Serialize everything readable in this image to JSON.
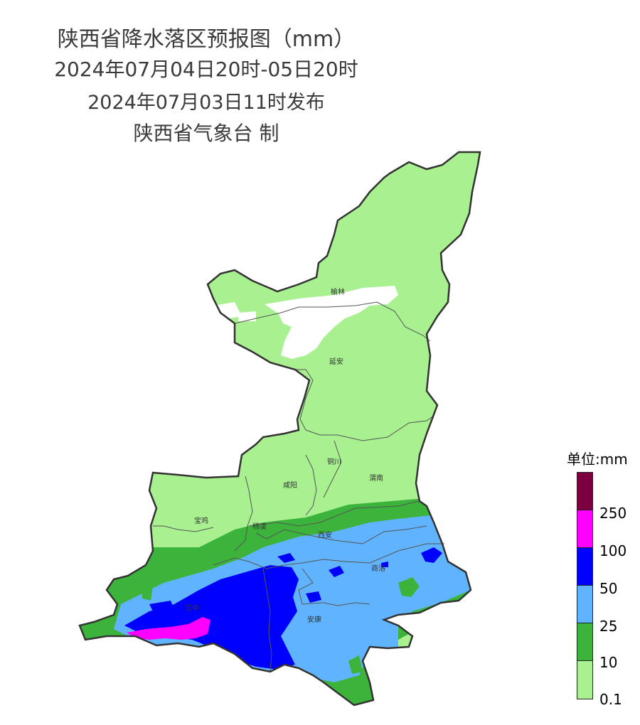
{
  "header": {
    "title": "陕西省降水落区预报图（mm）",
    "period": "2024年07月04日20时-05日20时",
    "issued": "2024年07月03日11时发布",
    "producer": "陕西省气象台 制"
  },
  "cities": [
    {
      "id": "yulin",
      "name": "榆林"
    },
    {
      "id": "yanan",
      "name": "延安"
    },
    {
      "id": "tongchuan",
      "name": "铜川"
    },
    {
      "id": "weinan",
      "name": "渭南"
    },
    {
      "id": "xianyang",
      "name": "咸阳"
    },
    {
      "id": "baoji",
      "name": "宝鸡"
    },
    {
      "id": "yangling",
      "name": "杨凌"
    },
    {
      "id": "xian",
      "name": "西安"
    },
    {
      "id": "shangluo",
      "name": "商洛"
    },
    {
      "id": "hanzhong",
      "name": "汉中"
    },
    {
      "id": "ankang",
      "name": "安康"
    }
  ],
  "legend": {
    "title": "单位:mm",
    "classes": [
      {
        "label": "",
        "color": "#7c0040"
      },
      {
        "label": "250",
        "color": "#ff00ff"
      },
      {
        "label": "100",
        "color": "#0000fe"
      },
      {
        "label": "50",
        "color": "#60b4ff"
      },
      {
        "label": "25",
        "color": "#3cb43c"
      },
      {
        "label": "10",
        "color": "#a8f090"
      },
      {
        "label": "0.1",
        "color": ""
      }
    ]
  },
  "colors": {
    "light_rain": "#a8f090",
    "moderate_rain": "#3cb43c",
    "heavy_rain": "#60b4ff",
    "rainstorm": "#0000fe",
    "heavy_rainstorm": "#ff00ff",
    "extreme": "#7c0040",
    "no_rain": "#ffffff"
  }
}
